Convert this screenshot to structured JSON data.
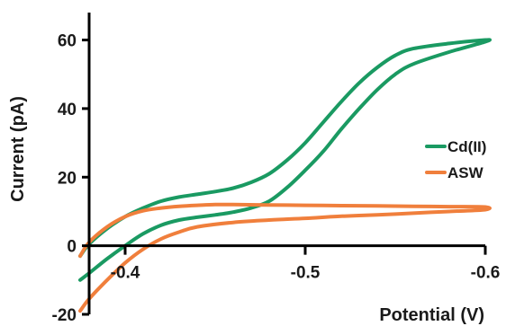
{
  "chart_data": {
    "type": "line",
    "title": "",
    "xlabel": "Potential (V)",
    "ylabel": "Current (pA)",
    "xlim": [
      -0.38,
      -0.6
    ],
    "ylim": [
      -20,
      68
    ],
    "x_ticks": [
      -0.4,
      -0.5,
      -0.6
    ],
    "x_tick_labels": [
      "-0.4",
      "-0.5",
      "-0.6"
    ],
    "y_ticks": [
      -20,
      0,
      20,
      40,
      60
    ],
    "y_tick_labels": [
      "-20",
      "0",
      "20",
      "40",
      "60"
    ],
    "grid": false,
    "legend_position": "right",
    "series": [
      {
        "name": "Cd(II)",
        "color": "#1a9a62",
        "x": [
          -0.375,
          -0.38,
          -0.39,
          -0.4,
          -0.41,
          -0.42,
          -0.43,
          -0.44,
          -0.45,
          -0.46,
          -0.47,
          -0.48,
          -0.49,
          -0.5,
          -0.51,
          -0.52,
          -0.53,
          -0.54,
          -0.55,
          -0.56,
          -0.58,
          -0.6,
          -0.6,
          -0.58,
          -0.56,
          -0.55,
          -0.54,
          -0.53,
          -0.52,
          -0.51,
          -0.5,
          -0.49,
          -0.48,
          -0.47,
          -0.46,
          -0.45,
          -0.44,
          -0.43,
          -0.42,
          -0.41,
          -0.4,
          -0.39,
          -0.38,
          -0.375
        ],
        "y": [
          -3,
          0.5,
          5,
          8.5,
          11,
          13,
          14.2,
          15,
          15.8,
          16.8,
          18.5,
          21,
          25,
          30,
          36,
          42,
          47.5,
          52,
          55.5,
          57.5,
          59,
          60,
          59.5,
          56.5,
          53,
          50,
          45.5,
          40,
          34,
          27.5,
          22,
          17,
          13,
          11,
          9.8,
          9,
          8.3,
          7.5,
          6,
          3.5,
          0,
          -3.8,
          -8,
          -10
        ]
      },
      {
        "name": "ASW",
        "color": "#f07f3c",
        "x": [
          -0.375,
          -0.38,
          -0.39,
          -0.4,
          -0.41,
          -0.42,
          -0.43,
          -0.44,
          -0.45,
          -0.46,
          -0.48,
          -0.5,
          -0.52,
          -0.54,
          -0.56,
          -0.58,
          -0.6,
          -0.6,
          -0.58,
          -0.56,
          -0.54,
          -0.52,
          -0.5,
          -0.48,
          -0.46,
          -0.44,
          -0.43,
          -0.42,
          -0.41,
          -0.4,
          -0.39,
          -0.38,
          -0.375
        ],
        "y": [
          -3,
          1,
          5.5,
          8.5,
          10.2,
          11,
          11.5,
          11.8,
          12,
          12,
          11.9,
          11.8,
          11.7,
          11.6,
          11.5,
          11.4,
          11.3,
          10.5,
          10,
          9.5,
          9,
          8.6,
          8,
          7.5,
          6.8,
          5.5,
          4,
          2,
          -1,
          -5,
          -10,
          -15.5,
          -19
        ]
      }
    ]
  }
}
